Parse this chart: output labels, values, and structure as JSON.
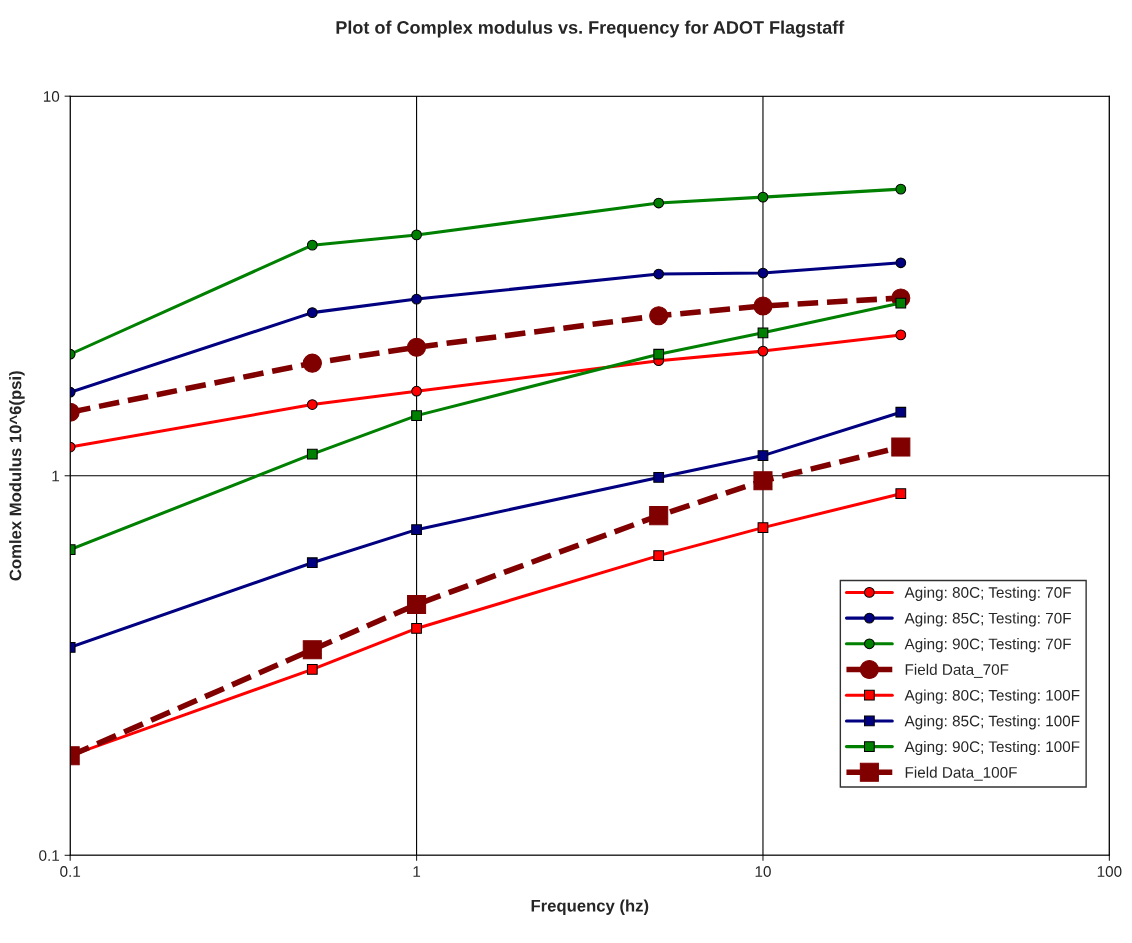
{
  "chart_data": {
    "type": "line",
    "title": "Plot of Complex modulus vs. Frequency for ADOT Flagstaff",
    "xlabel": "Frequency (hz)",
    "ylabel": "Comlex Modulus 10^6(psi)",
    "log": "xy",
    "xlim": [
      0.1,
      100
    ],
    "ylim": [
      0.1,
      10
    ],
    "xticks": [
      0.1,
      1,
      10,
      100
    ],
    "yticks": [
      0.1,
      1,
      10
    ],
    "grid": true,
    "legend": "bottom right",
    "x": [
      0.1,
      0.5,
      1,
      5,
      10,
      25
    ],
    "series": [
      {
        "name": "Aging: 80C; Testing: 70F",
        "color": "#ff0000",
        "marker": "circle",
        "line_style": "solid",
        "values": [
          1.19,
          1.54,
          1.67,
          2.01,
          2.13,
          2.35
        ]
      },
      {
        "name": "Aging: 85C; Testing: 70F",
        "color": "#000080",
        "marker": "circle",
        "line_style": "solid",
        "values": [
          1.66,
          2.69,
          2.92,
          3.4,
          3.42,
          3.64
        ]
      },
      {
        "name": "Aging: 90C; Testing: 70F",
        "color": "#008000",
        "marker": "circle",
        "line_style": "solid",
        "values": [
          2.09,
          4.05,
          4.31,
          5.23,
          5.42,
          5.69
        ]
      },
      {
        "name": "Field Data_70F",
        "color": "#800000",
        "marker": "circle",
        "line_style": "dashed",
        "values": [
          1.47,
          1.98,
          2.18,
          2.64,
          2.8,
          2.94
        ]
      },
      {
        "name": "Aging: 80C; Testing: 100F",
        "color": "#ff0000",
        "marker": "square",
        "line_style": "solid",
        "values": [
          0.183,
          0.309,
          0.396,
          0.616,
          0.73,
          0.897
        ]
      },
      {
        "name": "Aging: 85C; Testing: 100F",
        "color": "#000080",
        "marker": "square",
        "line_style": "solid",
        "values": [
          0.353,
          0.59,
          0.721,
          0.99,
          1.13,
          1.47
        ]
      },
      {
        "name": "Aging: 90C; Testing: 100F",
        "color": "#008000",
        "marker": "square",
        "line_style": "solid",
        "values": [
          0.639,
          1.14,
          1.44,
          2.09,
          2.38,
          2.85
        ]
      },
      {
        "name": "Field Data_100F",
        "color": "#800000",
        "marker": "square",
        "line_style": "dashed",
        "values": [
          0.183,
          0.348,
          0.458,
          0.785,
          0.97,
          1.19
        ]
      }
    ]
  }
}
